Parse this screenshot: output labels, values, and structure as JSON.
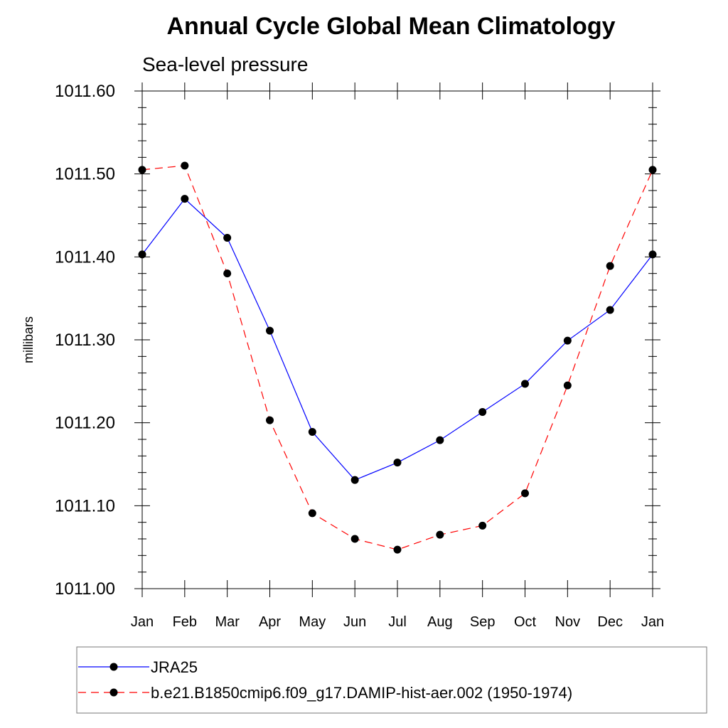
{
  "chart_data": {
    "type": "line",
    "title": "Annual Cycle Global Mean Climatology",
    "subtitle": "Sea-level pressure",
    "xlabel": "",
    "ylabel": "millibars",
    "categories": [
      "Jan",
      "Feb",
      "Mar",
      "Apr",
      "May",
      "Jun",
      "Jul",
      "Aug",
      "Sep",
      "Oct",
      "Nov",
      "Dec",
      "Jan"
    ],
    "ylim": [
      1011.0,
      1011.6
    ],
    "yticks": [
      "1011.00",
      "1011.10",
      "1011.20",
      "1011.30",
      "1011.40",
      "1011.50",
      "1011.60"
    ],
    "grid": false,
    "legend_position": "bottom",
    "series": [
      {
        "name": "JRA25",
        "color": "#0000ff",
        "dash": "solid",
        "marker": "circle",
        "values": [
          1011.403,
          1011.47,
          1011.423,
          1011.311,
          1011.189,
          1011.131,
          1011.152,
          1011.179,
          1011.213,
          1011.247,
          1011.299,
          1011.336,
          1011.403
        ]
      },
      {
        "name": "b.e21.B1850cmip6.f09_g17.DAMIP-hist-aer.002 (1950-1974)",
        "color": "#ff0000",
        "dash": "dashed",
        "marker": "circle",
        "values": [
          1011.505,
          1011.51,
          1011.38,
          1011.203,
          1011.091,
          1011.06,
          1011.047,
          1011.065,
          1011.076,
          1011.115,
          1011.245,
          1011.389,
          1011.505
        ]
      }
    ]
  }
}
